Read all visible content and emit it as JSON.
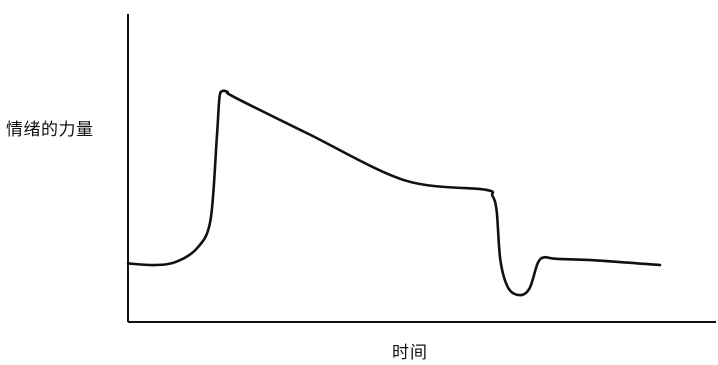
{
  "chart_data": {
    "type": "line",
    "title": "",
    "xlabel": "时间",
    "ylabel": "情绪的力量",
    "grid": false,
    "legend": "none",
    "xlim": [
      0,
      100
    ],
    "ylim": [
      0,
      100
    ],
    "axis_color": "#111111",
    "line_color": "#111111",
    "series": [
      {
        "x": [
          0,
          5,
          9,
          13,
          15.5,
          16.7,
          17.2,
          17.8,
          18.7,
          20,
          34,
          52,
          67,
          68.5,
          69.3,
          70,
          71.5,
          73.7,
          75.5,
          77,
          78.2,
          80.5,
          88,
          100
        ],
        "y": [
          19,
          18.5,
          19.5,
          24,
          33,
          60,
          73,
          75,
          74.7,
          73,
          61,
          46,
          43,
          41,
          36,
          20,
          11,
          8.7,
          11,
          19,
          21,
          20.5,
          20,
          18.5
        ]
      }
    ]
  }
}
